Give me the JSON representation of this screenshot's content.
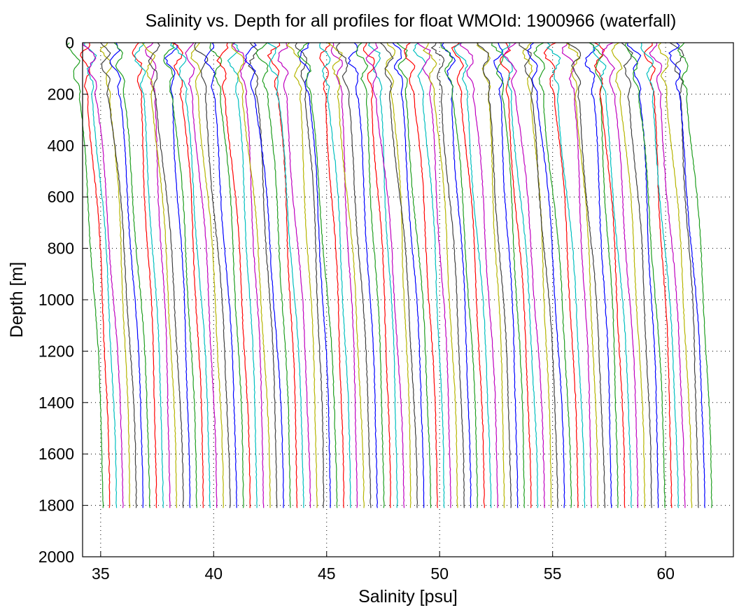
{
  "chart_data": {
    "type": "line",
    "title": "Salinity vs. Depth for all profiles for float WMOId: 1900966 (waterfall)",
    "xlabel": "Salinity [psu]",
    "ylabel": "Depth [m]",
    "xlim": [
      34.2,
      63.0
    ],
    "ylim": [
      0,
      2000
    ],
    "y_reversed": true,
    "grid": "dotted",
    "xticks": [
      35,
      40,
      45,
      50,
      55,
      60
    ],
    "yticks": [
      0,
      200,
      400,
      600,
      800,
      1000,
      1200,
      1400,
      1600,
      1800,
      2000
    ],
    "profiles": {
      "count": 92,
      "first_bottom_salinity": 35.1,
      "bottom_salinity_step": 0.296,
      "max_depth": 1810,
      "color_cycle": [
        "#1f9e1f",
        "#ff0000",
        "#00bfbf",
        "#bf00bf",
        "#b5b500",
        "#404040",
        "#0000ff"
      ]
    }
  }
}
